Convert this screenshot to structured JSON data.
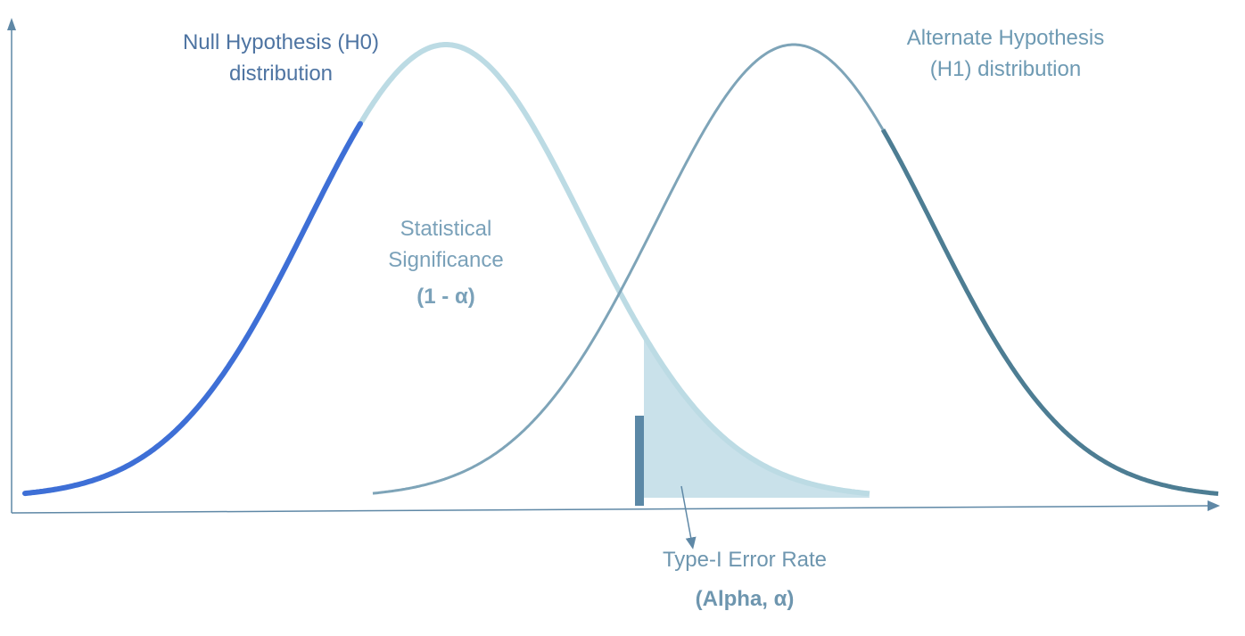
{
  "diagram": {
    "colors": {
      "axis": "#5f88a6",
      "h0_tail": "#3e6fd6",
      "h0_curve": "#bcdbe4",
      "h1_curve": "#7ea4b8",
      "h1_tail": "#4d7d93",
      "alpha_fill": "#c9e1ea",
      "critical_bar": "#5b88a6",
      "text_null": "#4e74a2",
      "text_alt": "#6e9ab3",
      "text_sig": "#7aa1b9",
      "text_type1": "#6e96af"
    },
    "null_label": {
      "line1": "Null Hypothesis (H0)",
      "line2": "distribution"
    },
    "alt_label": {
      "line1": "Alternate Hypothesis",
      "line2": "(H1) distribution"
    },
    "significance_label": {
      "line1": "Statistical",
      "line2": "Significance",
      "line3": "(1 - α)"
    },
    "type1_label": {
      "line1": "Type-I Error Rate",
      "line2": "(Alpha, α)"
    }
  }
}
